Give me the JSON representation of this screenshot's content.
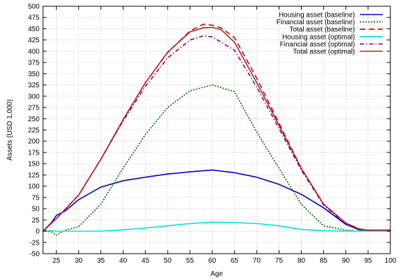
{
  "chart_data": {
    "type": "line",
    "title": "",
    "xlabel": "Age",
    "ylabel": "Assets (USD 1,000)",
    "xlim": [
      22,
      100
    ],
    "ylim": [
      -50,
      500
    ],
    "xticks": [
      25,
      30,
      35,
      40,
      45,
      50,
      55,
      60,
      65,
      70,
      75,
      80,
      85,
      90,
      95,
      100
    ],
    "yticks": [
      -50,
      -25,
      0,
      25,
      50,
      75,
      100,
      125,
      150,
      175,
      200,
      225,
      250,
      275,
      300,
      325,
      350,
      375,
      400,
      425,
      450,
      475,
      500
    ],
    "grid": true,
    "legend_position": "top-right",
    "series": [
      {
        "name": "Housing asset (baseline)",
        "color": "#0000cc",
        "dash": "solid",
        "x": [
          22,
          24,
          25,
          27,
          30,
          35,
          40,
          45,
          50,
          55,
          60,
          65,
          70,
          75,
          80,
          85,
          90,
          93,
          95,
          100
        ],
        "y": [
          0,
          20,
          35,
          45,
          70,
          98,
          112,
          120,
          127,
          132,
          136,
          130,
          120,
          104,
          82,
          52,
          15,
          3,
          2,
          2
        ]
      },
      {
        "name": "Financial asset (baseline)",
        "color": "#006400",
        "dash": "dotted",
        "x": [
          22,
          23,
          24,
          25,
          27,
          30,
          35,
          40,
          45,
          50,
          55,
          60,
          65,
          70,
          75,
          80,
          85,
          90,
          93,
          95,
          100
        ],
        "y": [
          0,
          0,
          -2,
          -9,
          2,
          10,
          60,
          140,
          215,
          275,
          312,
          325,
          310,
          220,
          140,
          60,
          12,
          2,
          0,
          0,
          0
        ]
      },
      {
        "name": "Total asset (baseline)",
        "color": "#cc0000",
        "dash": "dashed",
        "x": [
          22,
          25,
          30,
          35,
          40,
          45,
          50,
          55,
          58,
          60,
          62,
          65,
          70,
          75,
          80,
          85,
          90,
          93,
          95,
          100
        ],
        "y": [
          0,
          28,
          80,
          160,
          248,
          330,
          397,
          445,
          460,
          458,
          452,
          430,
          340,
          240,
          140,
          60,
          18,
          5,
          2,
          2
        ]
      },
      {
        "name": "Housing asset (optimal)",
        "color": "#00e0e0",
        "dash": "solid",
        "x": [
          22,
          25,
          30,
          35,
          40,
          45,
          50,
          55,
          60,
          65,
          70,
          75,
          80,
          85,
          90,
          95,
          100
        ],
        "y": [
          2,
          0,
          0,
          0,
          3,
          7,
          12,
          17,
          20,
          19,
          17,
          12,
          4,
          1,
          0,
          0,
          0
        ]
      },
      {
        "name": "Financial asset (optimal)",
        "color": "#800080",
        "dash": "dashdot",
        "x": [
          22,
          25,
          30,
          35,
          40,
          45,
          50,
          55,
          58,
          60,
          65,
          70,
          75,
          80,
          85,
          90,
          93,
          95,
          100
        ],
        "y": [
          0,
          28,
          80,
          160,
          245,
          322,
          385,
          425,
          434,
          432,
          402,
          320,
          228,
          136,
          58,
          16,
          4,
          2,
          2
        ]
      },
      {
        "name": "Total asset (optimal)",
        "color": "#b22222",
        "dash": "solid",
        "x": [
          22,
          25,
          30,
          35,
          40,
          45,
          50,
          55,
          58,
          60,
          62,
          65,
          70,
          75,
          80,
          85,
          90,
          93,
          95,
          100
        ],
        "y": [
          0,
          28,
          80,
          160,
          248,
          330,
          398,
          443,
          452,
          453,
          448,
          420,
          330,
          235,
          140,
          60,
          18,
          5,
          2,
          2
        ]
      }
    ]
  }
}
